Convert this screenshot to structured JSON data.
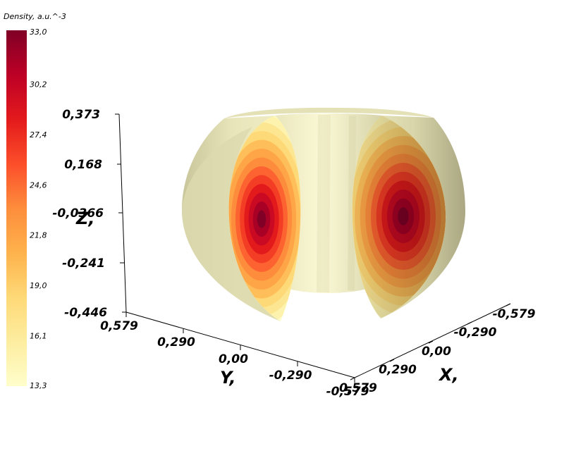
{
  "chart_data": {
    "type": "heatmap",
    "title": "",
    "colorbar": {
      "title": "Density, a.u.^-3",
      "min": 13.3,
      "max": 33.0,
      "tick_labels": [
        "33,0",
        "30,2",
        "27,4",
        "24,6",
        "21,8",
        "19,0",
        "16,1",
        "13,3"
      ],
      "colors": [
        "#fffecb",
        "#fdeda0",
        "#fed977",
        "#feb24c",
        "#fd8d3c",
        "#fc4e2a",
        "#e31a1c",
        "#bd0026",
        "#800026"
      ]
    },
    "axes": {
      "z": {
        "label": "Z,",
        "tick_labels": [
          "0,373",
          "0,168",
          "-0,0366",
          "-0,241",
          "-0,446"
        ],
        "range": [
          -0.446,
          0.373
        ]
      },
      "y": {
        "label": "Y,",
        "tick_labels": [
          "0,579",
          "0,290",
          "0,00",
          "-0,290",
          "-0,579"
        ],
        "range": [
          -0.579,
          0.579
        ]
      },
      "x": {
        "label": "X,",
        "tick_labels": [
          "-0,579",
          "-0,290",
          "0,00",
          "0,290",
          "0,579"
        ],
        "range": [
          -0.579,
          0.579
        ]
      }
    },
    "surface": {
      "shape": "torus with cut-away quarter showing density cross-sections",
      "cross_section_peak_value": 33.0,
      "surface_color": "#f7f4c8",
      "shadow_color": "#bdbb90"
    }
  }
}
